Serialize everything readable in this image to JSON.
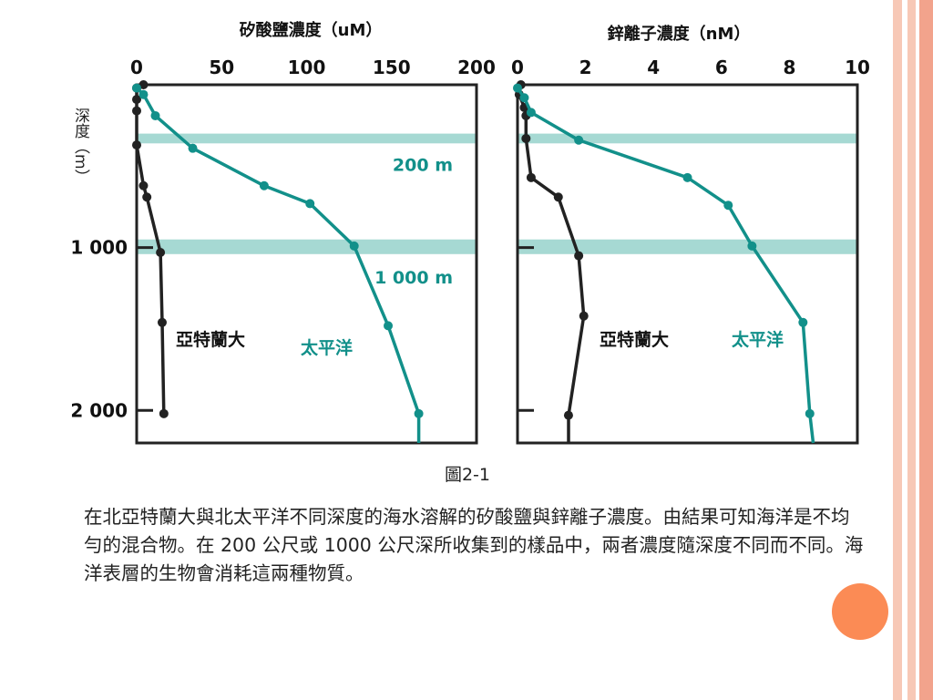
{
  "figure_caption": "圖2-1",
  "description": "在北亞特蘭大與北太平洋不同深度的海水溶解的矽酸鹽與鋅離子濃度。由結果可知海洋是不均勻的混合物。在 200 公尺或 1000 公尺深所收集到的樣品中，兩者濃度隨深度不同而不同。海洋表層的生物會消耗這兩種物質。",
  "colors": {
    "atlantic": "#222222",
    "pacific": "#12908a",
    "band": "#a6d9d3"
  },
  "chart_data": [
    {
      "type": "line",
      "title": "矽酸鹽濃度（uM）",
      "ylabel": "深度（m）",
      "xlim": [
        0,
        200
      ],
      "ylim": [
        2200,
        0
      ],
      "x_ticks": [
        "0",
        "50",
        "100",
        "150",
        "200"
      ],
      "y_ticks": [
        "1 000",
        "2 000"
      ],
      "bands": [
        {
          "label": "200 m",
          "depth_from": 300,
          "depth_to": 360
        },
        {
          "label": "1 000 m",
          "depth_from": 950,
          "depth_to": 1040
        }
      ],
      "series": [
        {
          "name": "亞特蘭大",
          "points": [
            [
              4,
              0
            ],
            [
              0,
              20
            ],
            [
              0,
              90
            ],
            [
              0,
              160
            ],
            [
              0,
              370
            ],
            [
              4,
              620
            ],
            [
              6,
              690
            ],
            [
              14,
              1030
            ],
            [
              15,
              1460
            ],
            [
              16,
              2020
            ]
          ]
        },
        {
          "name": "太平洋",
          "points": [
            [
              0,
              20
            ],
            [
              4,
              60
            ],
            [
              11,
              190
            ],
            [
              33,
              390
            ],
            [
              75,
              620
            ],
            [
              102,
              730
            ],
            [
              128,
              990
            ],
            [
              148,
              1480
            ],
            [
              166,
              2020
            ],
            [
              166,
              2200
            ]
          ]
        }
      ]
    },
    {
      "type": "line",
      "title": "鋅離子濃度（nM）",
      "ylabel": "",
      "xlim": [
        0,
        10
      ],
      "ylim": [
        2200,
        0
      ],
      "x_ticks": [
        "0",
        "2",
        "4",
        "6",
        "8",
        "10"
      ],
      "y_ticks": [
        "",
        ""
      ],
      "bands": [
        {
          "label": "",
          "depth_from": 300,
          "depth_to": 360
        },
        {
          "label": "",
          "depth_from": 950,
          "depth_to": 1040
        }
      ],
      "series": [
        {
          "name": "亞特蘭大",
          "points": [
            [
              0.1,
              0
            ],
            [
              0.05,
              60
            ],
            [
              0.2,
              140
            ],
            [
              0.25,
              190
            ],
            [
              0.25,
              330
            ],
            [
              0.4,
              570
            ],
            [
              1.2,
              690
            ],
            [
              1.8,
              1050
            ],
            [
              1.95,
              1420
            ],
            [
              1.5,
              2030
            ],
            [
              1.5,
              2200
            ]
          ]
        },
        {
          "name": "太平洋",
          "points": [
            [
              0,
              20
            ],
            [
              0.2,
              80
            ],
            [
              0.4,
              170
            ],
            [
              1.8,
              340
            ],
            [
              5.0,
              570
            ],
            [
              6.2,
              740
            ],
            [
              6.9,
              990
            ],
            [
              8.4,
              1460
            ],
            [
              8.6,
              2020
            ],
            [
              8.7,
              2200
            ]
          ]
        }
      ]
    }
  ]
}
